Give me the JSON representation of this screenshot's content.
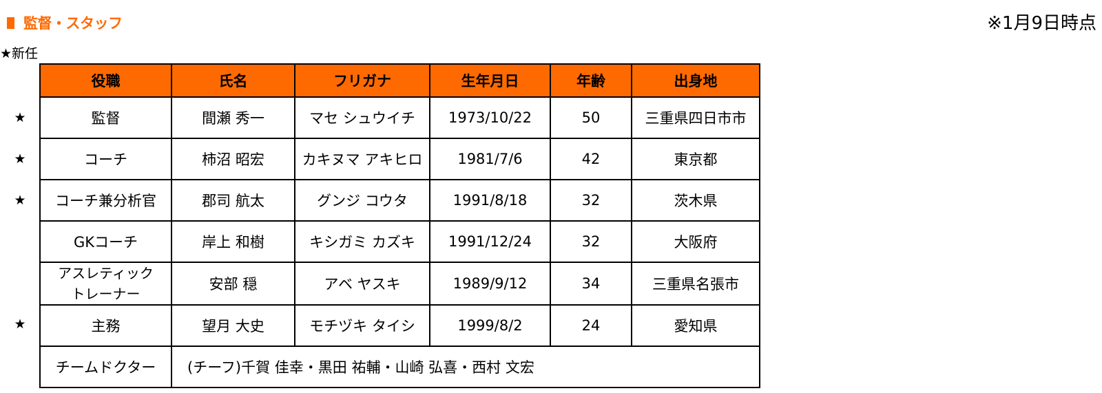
{
  "header": {
    "title": "監督・スタッフ",
    "as_of": "※1月9日時点",
    "accent_color": "#ff6a00"
  },
  "legend": "★新任",
  "table": {
    "columns": [
      "役職",
      "氏名",
      "フリガナ",
      "生年月日",
      "年齢",
      "出身地"
    ],
    "rows": [
      {
        "star": "★",
        "role": "監督",
        "name": "間瀬 秀一",
        "kana": "マセ シュウイチ",
        "birth": "1973/10/22",
        "age": "50",
        "hometown": "三重県四日市市"
      },
      {
        "star": "★",
        "role": "コーチ",
        "name": "柿沼 昭宏",
        "kana": "カキヌマ アキヒロ",
        "birth": "1981/7/6",
        "age": "42",
        "hometown": "東京都"
      },
      {
        "star": "★",
        "role": "コーチ兼分析官",
        "name": "郡司 航太",
        "kana": "グンジ コウタ",
        "birth": "1991/8/18",
        "age": "32",
        "hometown": "茨木県"
      },
      {
        "star": "",
        "role": "GKコーチ",
        "name": "岸上 和樹",
        "kana": "キシガミ カズキ",
        "birth": "1991/12/24",
        "age": "32",
        "hometown": "大阪府"
      },
      {
        "star": "",
        "role_line1": "アスレティック",
        "role_line2": "トレーナー",
        "name": "安部 穏",
        "kana": "アベ ヤスキ",
        "birth": "1989/9/12",
        "age": "34",
        "hometown": "三重県名張市"
      },
      {
        "star": "★",
        "role": "主務",
        "name": "望月 大史",
        "kana": "モチヅキ タイシ",
        "birth": "1999/8/2",
        "age": "24",
        "hometown": "愛知県"
      }
    ],
    "doctor": {
      "role": "チームドクター",
      "names": "(チーフ)千賀 佳幸・黒田 祐輔・山崎 弘喜・西村 文宏"
    }
  }
}
